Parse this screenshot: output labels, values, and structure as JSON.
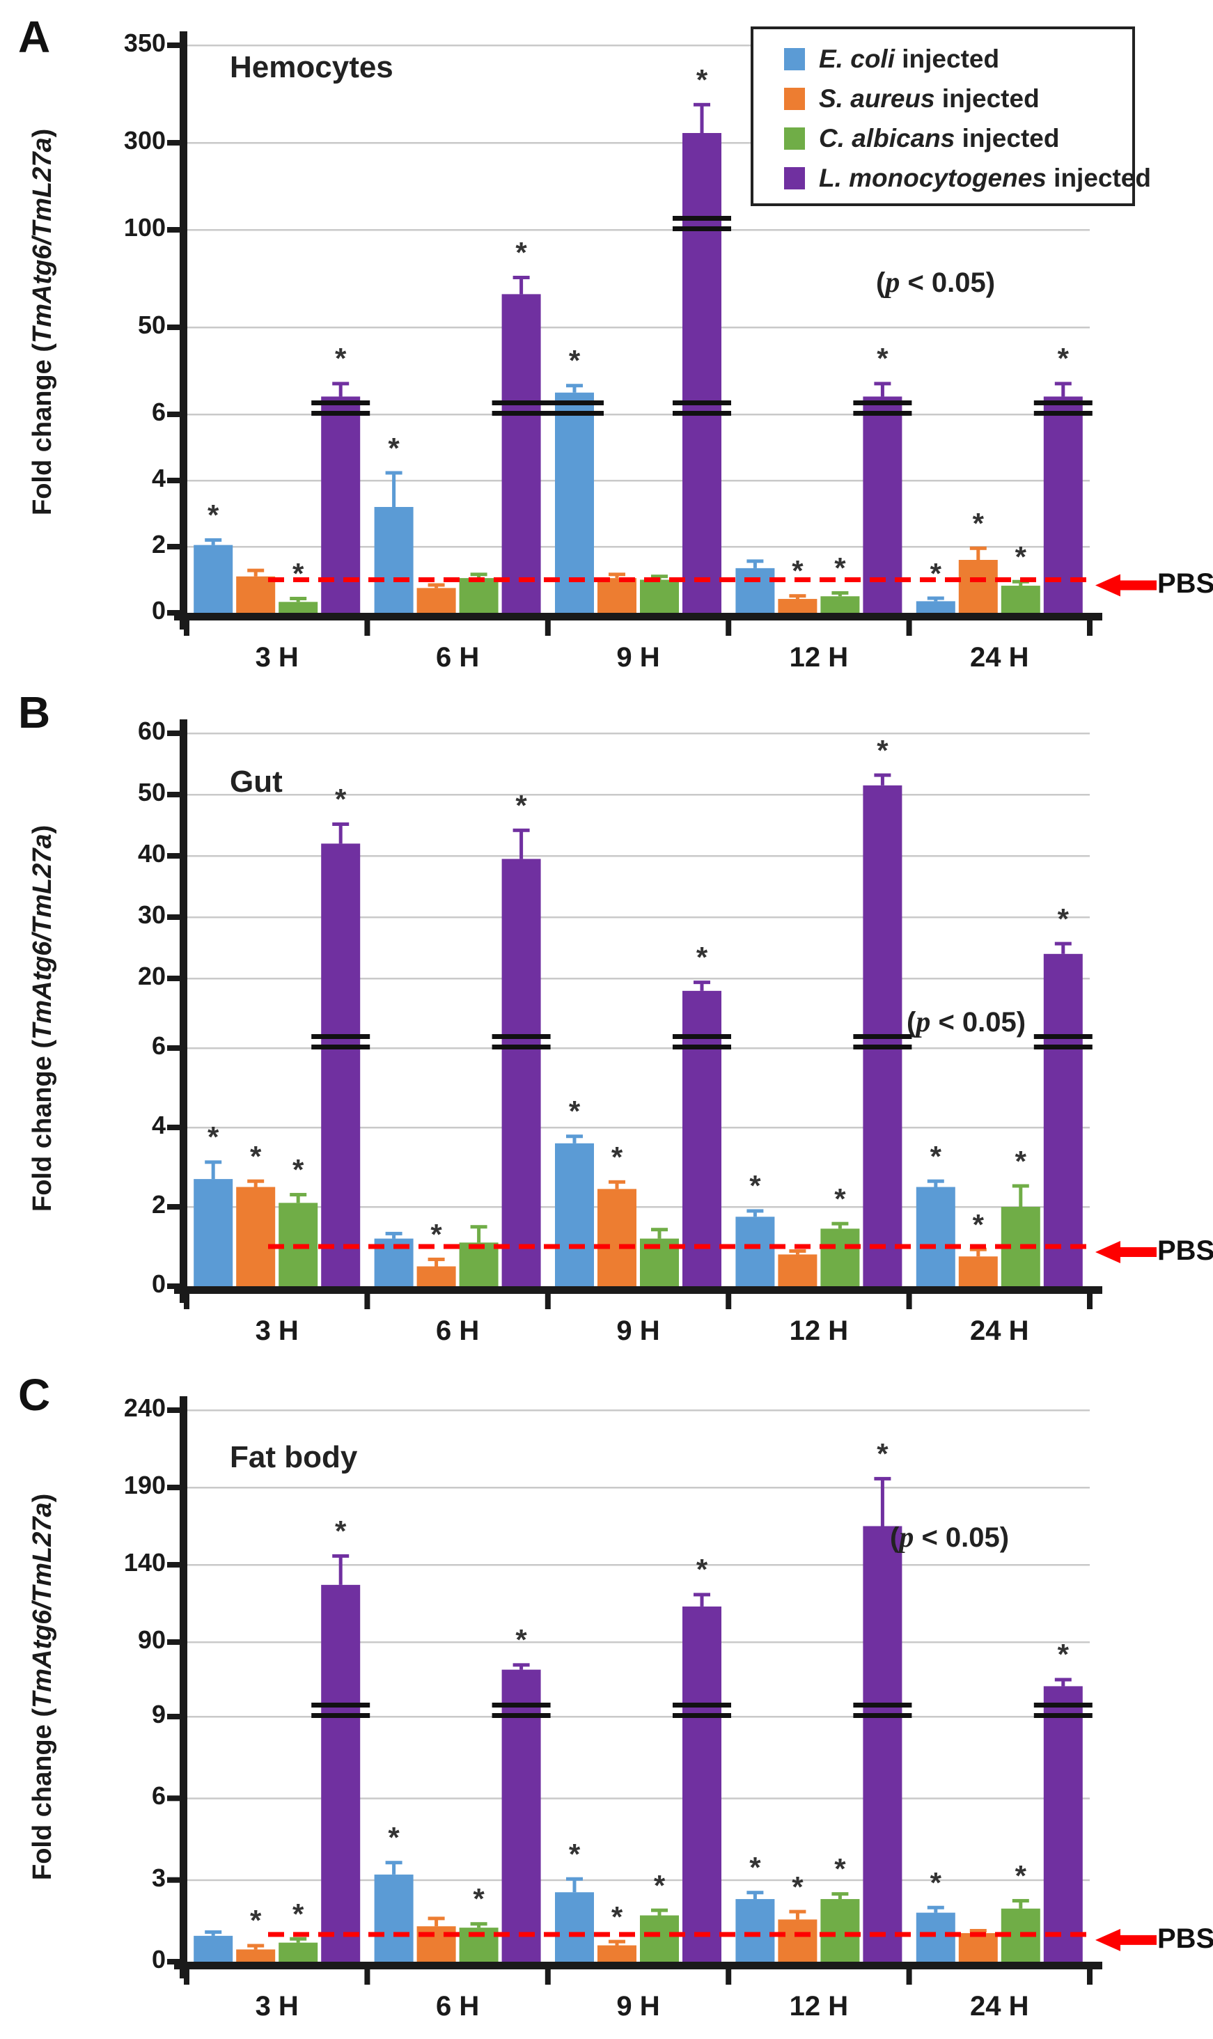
{
  "figure": {
    "p_open": "(",
    "p_sym": "p",
    "p_close": " < 0.05)",
    "ylabel_pre": "Fold change (",
    "ylabel_gene": "TmAtg6/TmL27a",
    "ylabel_post": ")"
  },
  "legend": {
    "items": [
      {
        "name_italic": "E. coli",
        "name_rest": " injected",
        "color": "#5B9BD5"
      },
      {
        "name_italic": "S. aureus",
        "name_rest": " injected",
        "color": "#ED7D31"
      },
      {
        "name_italic": "C. albicans",
        "name_rest": " injected",
        "color": "#70AD47"
      },
      {
        "name_italic": "L. monocytogenes",
        "name_rest": " injected",
        "color": "#7030A0"
      }
    ]
  },
  "pbs": {
    "label": "PBS",
    "line_color": "#FE0000",
    "line_value": 1
  },
  "chart_data": [
    {
      "type": "bar",
      "panel": "A",
      "title": "Hemocytes",
      "categories": [
        "3 H",
        "6 H",
        "9 H",
        "12 H",
        "24 H"
      ],
      "ylabel": "Fold change (TmAtg6/TmL27a)",
      "yticks": [
        0,
        2,
        4,
        6,
        50,
        100,
        300,
        350
      ],
      "axis_breaks_at": [
        6,
        100
      ],
      "y_segments": [
        {
          "from": 0,
          "to": 6,
          "px": 285
        },
        {
          "from": 6,
          "to": 50,
          "px": 125
        },
        {
          "from": 50,
          "to": 100,
          "px": 140
        },
        {
          "from": 100,
          "to": 300,
          "px": 125
        },
        {
          "from": 300,
          "to": 350,
          "px": 140
        }
      ],
      "series": [
        {
          "name": "E. coli injected",
          "color": "#5B9BD5",
          "values": [
            2.05,
            3.2,
            17,
            1.35,
            0.35
          ],
          "errors": [
            0.12,
            1.0,
            3,
            0.18,
            0.06
          ],
          "sig": [
            true,
            true,
            true,
            false,
            true
          ]
        },
        {
          "name": "S. aureus injected",
          "color": "#ED7D31",
          "values": [
            1.1,
            0.75,
            1.05,
            0.42,
            1.6
          ],
          "errors": [
            0.15,
            0.06,
            0.08,
            0.06,
            0.32
          ],
          "sig": [
            false,
            false,
            false,
            true,
            true
          ]
        },
        {
          "name": "C. albicans injected",
          "color": "#70AD47",
          "values": [
            0.33,
            1.05,
            1.0,
            0.5,
            0.82
          ],
          "errors": [
            0.07,
            0.08,
            0.07,
            0.07,
            0.09
          ],
          "sig": [
            true,
            false,
            false,
            true,
            true
          ]
        },
        {
          "name": "L. monocytogenes injected",
          "color": "#7030A0",
          "values": [
            15,
            67,
            305,
            15,
            15
          ],
          "errors": [
            6,
            8,
            14,
            6,
            6
          ],
          "sig": [
            true,
            true,
            true,
            true,
            true
          ]
        }
      ]
    },
    {
      "type": "bar",
      "panel": "B",
      "title": "Gut",
      "categories": [
        "3 H",
        "6 H",
        "9 H",
        "12 H",
        "24 H"
      ],
      "ylabel": "Fold change (TmAtg6/TmL27a)",
      "yticks": [
        0,
        2,
        4,
        6,
        20,
        30,
        40,
        50,
        60
      ],
      "axis_breaks_at": [
        6
      ],
      "y_segments": [
        {
          "from": 0,
          "to": 6,
          "px": 342
        },
        {
          "from": 6,
          "to": 20,
          "px": 100
        },
        {
          "from": 20,
          "to": 60,
          "px": 352
        }
      ],
      "series": [
        {
          "name": "E. coli injected",
          "color": "#5B9BD5",
          "values": [
            2.7,
            1.2,
            3.6,
            1.75,
            2.5
          ],
          "errors": [
            0.4,
            0.1,
            0.15,
            0.12,
            0.12
          ],
          "sig": [
            true,
            false,
            true,
            true,
            true
          ]
        },
        {
          "name": "S. aureus injected",
          "color": "#ED7D31",
          "values": [
            2.5,
            0.5,
            2.45,
            0.8,
            0.75
          ],
          "errors": [
            0.12,
            0.15,
            0.15,
            0.06,
            0.15
          ],
          "sig": [
            true,
            true,
            true,
            false,
            true
          ]
        },
        {
          "name": "C. albicans injected",
          "color": "#70AD47",
          "values": [
            2.1,
            1.1,
            1.2,
            1.45,
            2.0
          ],
          "errors": [
            0.18,
            0.37,
            0.2,
            0.1,
            0.5
          ],
          "sig": [
            true,
            false,
            false,
            true,
            true
          ]
        },
        {
          "name": "L. monocytogenes injected",
          "color": "#7030A0",
          "values": [
            42,
            39.5,
            17.5,
            51.5,
            24
          ],
          "errors": [
            3,
            4.5,
            1.5,
            1.5,
            1.5
          ],
          "sig": [
            true,
            true,
            true,
            true,
            true
          ]
        }
      ]
    },
    {
      "type": "bar",
      "panel": "C",
      "title": "Fat body",
      "categories": [
        "3 H",
        "6 H",
        "9 H",
        "12 H",
        "24 H"
      ],
      "ylabel": "Fold change (TmAtg6/TmL27a)",
      "yticks": [
        0,
        3,
        6,
        9,
        90,
        140,
        190,
        240
      ],
      "axis_breaks_at": [
        9
      ],
      "y_segments": [
        {
          "from": 0,
          "to": 9,
          "px": 352
        },
        {
          "from": 9,
          "to": 90,
          "px": 107
        },
        {
          "from": 90,
          "to": 240,
          "px": 333
        }
      ],
      "series": [
        {
          "name": "E. coli injected",
          "color": "#5B9BD5",
          "values": [
            0.95,
            3.2,
            2.55,
            2.3,
            1.8
          ],
          "errors": [
            0.1,
            0.4,
            0.45,
            0.2,
            0.15
          ],
          "sig": [
            false,
            true,
            true,
            true,
            true
          ]
        },
        {
          "name": "S. aureus injected",
          "color": "#ED7D31",
          "values": [
            0.45,
            1.3,
            0.6,
            1.55,
            1.05
          ],
          "errors": [
            0.1,
            0.25,
            0.1,
            0.25,
            0.05
          ],
          "sig": [
            true,
            false,
            true,
            true,
            false
          ]
        },
        {
          "name": "C. albicans injected",
          "color": "#70AD47",
          "values": [
            0.7,
            1.25,
            1.7,
            2.3,
            1.95
          ],
          "errors": [
            0.1,
            0.1,
            0.15,
            0.15,
            0.25
          ],
          "sig": [
            true,
            true,
            true,
            true,
            true
          ]
        },
        {
          "name": "L. monocytogenes injected",
          "color": "#7030A0",
          "values": [
            127,
            60,
            113,
            165,
            42
          ],
          "errors": [
            18,
            4,
            7,
            30,
            6
          ],
          "sig": [
            true,
            true,
            true,
            true,
            true
          ]
        }
      ]
    }
  ]
}
